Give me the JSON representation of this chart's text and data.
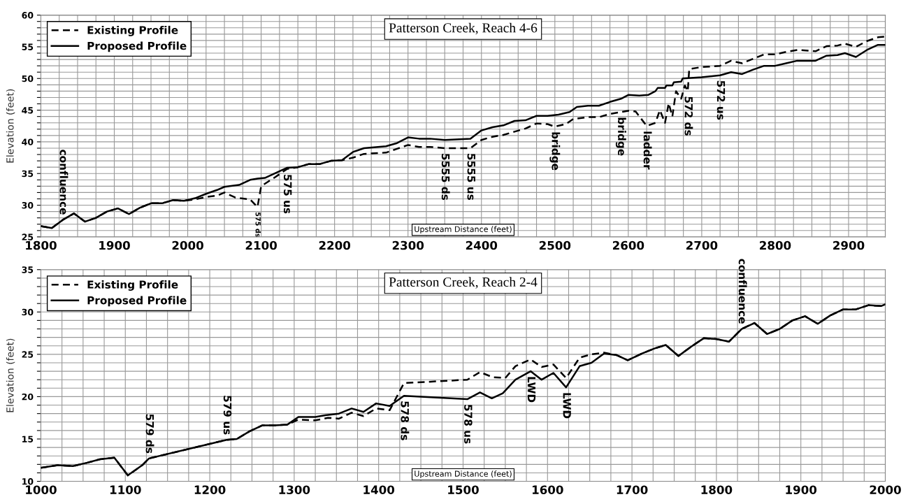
{
  "chart_data": [
    {
      "type": "line",
      "title": "Patterson Creek, Reach 4-6",
      "xlabel": "Upstream Distance (feet)",
      "ylabel": "Elevation (feet)",
      "xlim": [
        1800,
        2950
      ],
      "ylim": [
        25,
        60
      ],
      "xticks": [
        1800,
        {
          "value": 1825,
          "label": null
        },
        {
          "value": 1850,
          "label": null
        },
        {
          "value": 1875,
          "label": null
        },
        1900,
        {
          "value": 1925,
          "label": null
        },
        {
          "value": 1950,
          "label": null
        },
        {
          "value": 1975,
          "label": null
        },
        2000,
        {
          "value": 2025,
          "label": null
        },
        {
          "value": 2050,
          "label": null
        },
        {
          "value": 2075,
          "label": null
        },
        2100,
        {
          "value": 2125,
          "label": null
        },
        {
          "value": 2150,
          "label": null
        },
        {
          "value": 2175,
          "label": null
        },
        2200,
        {
          "value": 2225,
          "label": null
        },
        {
          "value": 2250,
          "label": null
        },
        {
          "value": 2275,
          "label": null
        },
        2300,
        {
          "value": 2325,
          "label": null
        },
        {
          "value": 2350,
          "label": null
        },
        {
          "value": 2375,
          "label": null
        },
        2400,
        {
          "value": 2425,
          "label": null
        },
        {
          "value": 2450,
          "label": null
        },
        {
          "value": 2475,
          "label": null
        },
        2500,
        {
          "value": 2525,
          "label": null
        },
        {
          "value": 2550,
          "label": null
        },
        {
          "value": 2575,
          "label": null
        },
        2600,
        {
          "value": 2625,
          "label": null
        },
        {
          "value": 2650,
          "label": null
        },
        {
          "value": 2675,
          "label": null
        },
        2700,
        {
          "value": 2725,
          "label": null
        },
        {
          "value": 2750,
          "label": null
        },
        {
          "value": 2775,
          "label": null
        },
        2800,
        {
          "value": 2825,
          "label": null
        },
        {
          "value": 2850,
          "label": null
        },
        {
          "value": 2875,
          "label": null
        },
        2900,
        {
          "value": 2925,
          "label": null
        },
        {
          "value": 2950,
          "label": null
        }
      ],
      "yticks": [
        25,
        {
          "value": 26,
          "label": null
        },
        {
          "value": 27,
          "label": null
        },
        {
          "value": 28,
          "label": null
        },
        {
          "value": 29,
          "label": null
        },
        30,
        {
          "value": 31,
          "label": null
        },
        {
          "value": 32,
          "label": null
        },
        {
          "value": 33,
          "label": null
        },
        {
          "value": 34,
          "label": null
        },
        35,
        {
          "value": 36,
          "label": null
        },
        {
          "value": 37,
          "label": null
        },
        {
          "value": 38,
          "label": null
        },
        {
          "value": 39,
          "label": null
        },
        40,
        {
          "value": 41,
          "label": null
        },
        {
          "value": 42,
          "label": null
        },
        {
          "value": 43,
          "label": null
        },
        {
          "value": 44,
          "label": null
        },
        45,
        {
          "value": 46,
          "label": null
        },
        {
          "value": 47,
          "label": null
        },
        {
          "value": 48,
          "label": null
        },
        {
          "value": 49,
          "label": null
        },
        50,
        {
          "value": 51,
          "label": null
        },
        {
          "value": 52,
          "label": null
        },
        {
          "value": 53,
          "label": null
        },
        {
          "value": 54,
          "label": null
        },
        55,
        {
          "value": 56,
          "label": null
        },
        {
          "value": 57,
          "label": null
        },
        {
          "value": 58,
          "label": null
        },
        {
          "value": 59,
          "label": null
        },
        60
      ],
      "grid": true,
      "legend": "top left",
      "marker": "none",
      "series": [
        {
          "name": "Existing Profile",
          "color": "#000000",
          "line_style": "dashed",
          "x": [
            1800,
            1815,
            1830,
            1845,
            1860,
            1875,
            1890,
            1905,
            1920,
            1935,
            1950,
            1965,
            1980,
            1995,
            2010,
            2025,
            2040,
            2050,
            2065,
            2085,
            2095,
            2100,
            2120,
            2135,
            2150,
            2165,
            2180,
            2195,
            2210,
            2225,
            2240,
            2270,
            2285,
            2300,
            2315,
            2330,
            2350,
            2385,
            2400,
            2415,
            2430,
            2445,
            2460,
            2475,
            2490,
            2500,
            2515,
            2525,
            2545,
            2560,
            2575,
            2590,
            2600,
            2610,
            2625,
            2637,
            2643,
            2650,
            2655,
            2660,
            2665,
            2672,
            2677,
            2681,
            2683,
            2700,
            2725,
            2740,
            2755,
            2770,
            2785,
            2800,
            2815,
            2830,
            2845,
            2855,
            2870,
            2885,
            2895,
            2910,
            2925,
            2940,
            2950
          ],
          "values": [
            26.7,
            26.4,
            27.7,
            28.7,
            27.4,
            28.0,
            29.0,
            29.5,
            28.6,
            29.6,
            30.3,
            30.3,
            30.8,
            30.7,
            30.9,
            31.3,
            31.5,
            32.0,
            31.2,
            30.9,
            29.7,
            33.0,
            34.5,
            35.7,
            36.0,
            36.5,
            36.5,
            37.0,
            37.1,
            37.5,
            38.1,
            38.3,
            38.9,
            39.5,
            39.2,
            39.2,
            39.0,
            39.0,
            40.3,
            40.8,
            41.1,
            41.6,
            42.1,
            42.9,
            42.8,
            42.4,
            42.8,
            43.6,
            43.9,
            43.9,
            44.4,
            44.7,
            44.9,
            44.8,
            42.5,
            43.0,
            45.0,
            43.0,
            46.1,
            44.0,
            48.0,
            46.8,
            48.9,
            48.0,
            51.5,
            51.8,
            52.0,
            52.8,
            52.4,
            53.1,
            53.8,
            53.8,
            54.2,
            54.5,
            54.4,
            54.3,
            55.1,
            55.2,
            55.5,
            55.0,
            55.9,
            56.5,
            56.6
          ]
        },
        {
          "name": "Proposed Profile",
          "color": "#000000",
          "line_style": "solid",
          "x": [
            1800,
            1815,
            1830,
            1845,
            1860,
            1875,
            1890,
            1905,
            1920,
            1935,
            1950,
            1965,
            1980,
            1995,
            2010,
            2025,
            2040,
            2050,
            2070,
            2085,
            2095,
            2105,
            2120,
            2135,
            2150,
            2165,
            2180,
            2195,
            2210,
            2225,
            2240,
            2270,
            2285,
            2300,
            2315,
            2330,
            2350,
            2385,
            2400,
            2415,
            2430,
            2445,
            2460,
            2475,
            2490,
            2505,
            2520,
            2530,
            2545,
            2560,
            2575,
            2590,
            2600,
            2615,
            2627,
            2637,
            2640,
            2650,
            2652,
            2660,
            2662,
            2672,
            2674,
            2700,
            2725,
            2740,
            2755,
            2770,
            2785,
            2800,
            2815,
            2830,
            2845,
            2855,
            2870,
            2885,
            2895,
            2910,
            2925,
            2940,
            2950
          ],
          "values": [
            26.7,
            26.4,
            27.7,
            28.7,
            27.4,
            28.0,
            29.0,
            29.5,
            28.6,
            29.6,
            30.3,
            30.3,
            30.8,
            30.7,
            31.1,
            31.8,
            32.4,
            32.9,
            33.2,
            34.0,
            34.2,
            34.3,
            35.1,
            35.9,
            36.0,
            36.5,
            36.5,
            37.0,
            37.1,
            38.4,
            39.0,
            39.3,
            39.8,
            40.7,
            40.5,
            40.5,
            40.3,
            40.5,
            41.8,
            42.3,
            42.6,
            43.3,
            43.4,
            44.1,
            44.1,
            44.3,
            44.7,
            45.5,
            45.7,
            45.7,
            46.3,
            46.8,
            47.4,
            47.3,
            47.4,
            48.0,
            48.5,
            48.5,
            48.9,
            48.9,
            49.4,
            49.5,
            50.0,
            50.2,
            50.5,
            51.0,
            50.7,
            51.4,
            52.0,
            52.0,
            52.4,
            52.8,
            52.8,
            52.8,
            53.6,
            53.7,
            54.0,
            53.4,
            54.5,
            55.3,
            55.3
          ]
        }
      ],
      "annotations": [
        {
          "text": "confluence",
          "x": 1830,
          "y": 27.7
        },
        {
          "text": "575 ds",
          "x": 2095,
          "y": 29.7
        },
        {
          "text": "575 us",
          "x": 2135,
          "y": 35.7
        },
        {
          "text": "5555 ds",
          "x": 2350,
          "y": 39.0
        },
        {
          "text": "5555 us",
          "x": 2385,
          "y": 39.0
        },
        {
          "text": "bridge",
          "x": 2500,
          "y": 42.4
        },
        {
          "text": "bridge",
          "x": 2590,
          "y": 44.7
        },
        {
          "text": "ladder",
          "x": 2625,
          "y": 42.5
        },
        {
          "text": "572 ds",
          "x": 2681,
          "y": 48.0
        },
        {
          "text": "572 us",
          "x": 2725,
          "y": 50.5
        }
      ]
    },
    {
      "type": "line",
      "title": "Patterson Creek, Reach 2-4",
      "xlabel": "Upstream Distance (feet)",
      "ylabel": "Elevation (feet)",
      "xlim": [
        1000,
        2000
      ],
      "ylim": [
        10,
        35
      ],
      "xticks": [
        1000,
        {
          "value": 1025,
          "label": null
        },
        {
          "value": 1050,
          "label": null
        },
        {
          "value": 1075,
          "label": null
        },
        1100,
        {
          "value": 1125,
          "label": null
        },
        {
          "value": 1150,
          "label": null
        },
        {
          "value": 1175,
          "label": null
        },
        1200,
        {
          "value": 1225,
          "label": null
        },
        {
          "value": 1250,
          "label": null
        },
        {
          "value": 1275,
          "label": null
        },
        1300,
        {
          "value": 1325,
          "label": null
        },
        {
          "value": 1350,
          "label": null
        },
        {
          "value": 1375,
          "label": null
        },
        1400,
        {
          "value": 1425,
          "label": null
        },
        {
          "value": 1450,
          "label": null
        },
        {
          "value": 1475,
          "label": null
        },
        1500,
        {
          "value": 1525,
          "label": null
        },
        {
          "value": 1550,
          "label": null
        },
        {
          "value": 1575,
          "label": null
        },
        1600,
        {
          "value": 1625,
          "label": null
        },
        {
          "value": 1650,
          "label": null
        },
        {
          "value": 1675,
          "label": null
        },
        1700,
        {
          "value": 1725,
          "label": null
        },
        {
          "value": 1750,
          "label": null
        },
        {
          "value": 1775,
          "label": null
        },
        1800,
        {
          "value": 1825,
          "label": null
        },
        {
          "value": 1850,
          "label": null
        },
        {
          "value": 1875,
          "label": null
        },
        1900,
        {
          "value": 1925,
          "label": null
        },
        {
          "value": 1950,
          "label": null
        },
        {
          "value": 1975,
          "label": null
        },
        2000
      ],
      "yticks": [
        10,
        {
          "value": 11,
          "label": null
        },
        {
          "value": 12,
          "label": null
        },
        {
          "value": 13,
          "label": null
        },
        {
          "value": 14,
          "label": null
        },
        15,
        {
          "value": 16,
          "label": null
        },
        {
          "value": 17,
          "label": null
        },
        {
          "value": 18,
          "label": null
        },
        {
          "value": 19,
          "label": null
        },
        20,
        {
          "value": 21,
          "label": null
        },
        {
          "value": 22,
          "label": null
        },
        {
          "value": 23,
          "label": null
        },
        {
          "value": 24,
          "label": null
        },
        25,
        {
          "value": 26,
          "label": null
        },
        {
          "value": 27,
          "label": null
        },
        {
          "value": 28,
          "label": null
        },
        {
          "value": 29,
          "label": null
        },
        30,
        {
          "value": 31,
          "label": null
        },
        {
          "value": 32,
          "label": null
        },
        {
          "value": 33,
          "label": null
        },
        {
          "value": 34,
          "label": null
        },
        35
      ],
      "grid": true,
      "legend": "top left",
      "marker": "none",
      "series": [
        {
          "name": "Existing Profile",
          "color": "#000000",
          "line_style": "dashed",
          "x": [
            1000,
            1020,
            1038,
            1055,
            1070,
            1087,
            1103,
            1120,
            1128,
            1220,
            1232,
            1247,
            1262,
            1277,
            1292,
            1305,
            1325,
            1340,
            1353,
            1368,
            1382,
            1397,
            1413,
            1430,
            1505,
            1520,
            1535,
            1550,
            1562,
            1580,
            1593,
            1607,
            1622,
            1638,
            1652,
            1667,
            1682,
            1695,
            1712,
            1727,
            1740,
            1755,
            1770,
            1785,
            1800,
            1815,
            1830,
            1845,
            1860,
            1875,
            1890,
            1905,
            1920,
            1935,
            1950,
            1965,
            1980,
            1995,
            2000
          ],
          "values": [
            11.6,
            11.9,
            11.8,
            12.2,
            12.6,
            12.8,
            10.7,
            11.9,
            12.7,
            14.9,
            15.0,
            15.9,
            16.6,
            16.6,
            16.7,
            17.3,
            17.2,
            17.5,
            17.4,
            18.1,
            17.7,
            18.6,
            18.4,
            21.6,
            22.0,
            22.9,
            22.3,
            22.2,
            23.6,
            24.4,
            23.5,
            23.8,
            22.2,
            24.6,
            25.0,
            25.2,
            24.9,
            24.3,
            25.1,
            25.7,
            26.1,
            24.8,
            25.9,
            26.9,
            26.8,
            26.5,
            28.0,
            28.7,
            27.4,
            28.0,
            29.0,
            29.5,
            28.6,
            29.6,
            30.3,
            30.3,
            30.8,
            30.7,
            30.9
          ]
        },
        {
          "name": "Proposed Profile",
          "color": "#000000",
          "line_style": "solid",
          "x": [
            1000,
            1020,
            1038,
            1055,
            1070,
            1087,
            1103,
            1120,
            1128,
            1220,
            1232,
            1247,
            1262,
            1277,
            1292,
            1305,
            1325,
            1337,
            1353,
            1368,
            1382,
            1397,
            1413,
            1430,
            1505,
            1520,
            1534,
            1547,
            1562,
            1580,
            1593,
            1607,
            1622,
            1638,
            1652,
            1667,
            1682,
            1695,
            1712,
            1727,
            1740,
            1755,
            1770,
            1785,
            1800,
            1815,
            1830,
            1845,
            1860,
            1875,
            1890,
            1905,
            1920,
            1935,
            1950,
            1965,
            1980,
            1995,
            2000
          ],
          "values": [
            11.6,
            11.9,
            11.8,
            12.2,
            12.6,
            12.8,
            10.7,
            11.9,
            12.7,
            14.9,
            15.0,
            15.9,
            16.6,
            16.6,
            16.7,
            17.6,
            17.6,
            17.8,
            18.0,
            18.6,
            18.2,
            19.2,
            18.9,
            20.1,
            19.7,
            20.5,
            19.8,
            20.4,
            22.0,
            23.0,
            22.0,
            22.8,
            21.1,
            23.6,
            24.0,
            25.1,
            24.9,
            24.3,
            25.1,
            25.7,
            26.1,
            24.8,
            25.9,
            26.9,
            26.8,
            26.5,
            28.0,
            28.7,
            27.4,
            28.0,
            29.0,
            29.5,
            28.6,
            29.6,
            30.3,
            30.3,
            30.8,
            30.7,
            30.9
          ]
        }
      ],
      "annotations": [
        {
          "text": "579 ds",
          "x": 1128,
          "y": 12.7
        },
        {
          "text": "579 us",
          "x": 1220,
          "y": 14.9
        },
        {
          "text": "578 ds",
          "x": 1430,
          "y": 20.1
        },
        {
          "text": "578 us",
          "x": 1505,
          "y": 19.7
        },
        {
          "text": "LWD",
          "x": 1580,
          "y": 23.0
        },
        {
          "text": "LWD",
          "x": 1622,
          "y": 21.1
        },
        {
          "text": "confluence",
          "x": 1830,
          "y": 28.0
        }
      ]
    }
  ]
}
